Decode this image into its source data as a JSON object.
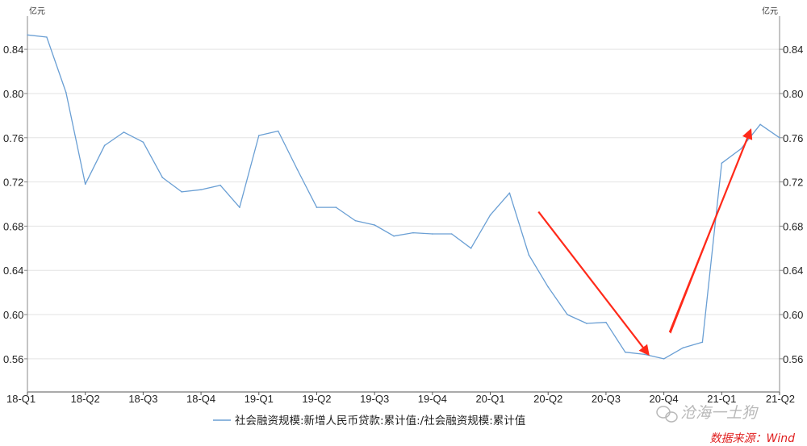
{
  "chart_data": {
    "type": "line",
    "unit_left": "亿元",
    "unit_right": "亿元",
    "ylim": [
      0.53,
      0.87
    ],
    "y_ticks": [
      0.56,
      0.6,
      0.64,
      0.68,
      0.72,
      0.76,
      0.8,
      0.84
    ],
    "y_tick_labels": [
      "0.56",
      "0.60",
      "0.64",
      "0.68",
      "0.72",
      "0.76",
      "0.80",
      "0.84"
    ],
    "x_tick_labels": [
      "18-Q1",
      "18-Q2",
      "18-Q3",
      "18-Q4",
      "19-Q1",
      "19-Q2",
      "19-Q3",
      "19-Q4",
      "20-Q1",
      "20-Q2",
      "20-Q3",
      "20-Q4",
      "21-Q1",
      "21-Q2"
    ],
    "grid": "horizontal",
    "series": [
      {
        "name": "社会融资规模:新增人民币贷款:累计值:/社会融资规模:累计值",
        "color": "#6a9fd4",
        "values": [
          0.853,
          0.851,
          0.801,
          0.718,
          0.753,
          0.765,
          0.756,
          0.724,
          0.711,
          0.713,
          0.717,
          0.697,
          0.762,
          0.766,
          0.731,
          0.697,
          0.697,
          0.685,
          0.681,
          0.671,
          0.674,
          0.673,
          0.673,
          0.66,
          0.69,
          0.71,
          0.654,
          0.625,
          0.6,
          0.592,
          0.593,
          0.566,
          0.564,
          0.56,
          0.57,
          0.575,
          0.737,
          0.75,
          0.772,
          0.76
        ]
      }
    ],
    "legend_position": "bottom",
    "annotations": [
      {
        "type": "arrow",
        "color": "#ff2a1a",
        "from": [
          26.5,
          0.693
        ],
        "to": [
          32.2,
          0.564
        ]
      },
      {
        "type": "arrow",
        "color": "#ff2a1a",
        "from": [
          33.3,
          0.584
        ],
        "to": [
          37.5,
          0.767
        ]
      }
    ]
  },
  "watermark": "沧海一土狗",
  "source": "数据来源：Wind"
}
